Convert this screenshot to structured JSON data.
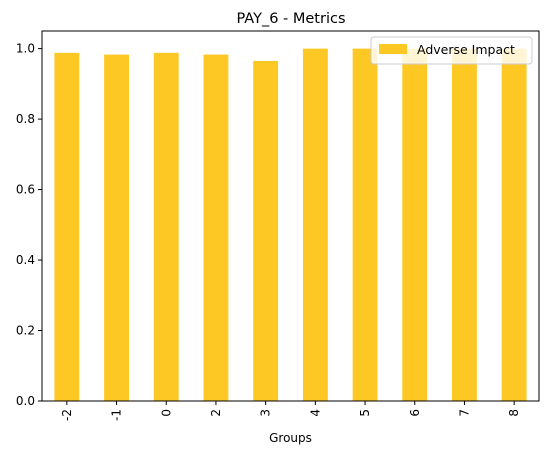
{
  "chart_data": {
    "type": "bar",
    "title": "PAY_6 - Metrics",
    "xlabel": "Groups",
    "ylabel": "",
    "categories": [
      "-2",
      "-1",
      "0",
      "2",
      "3",
      "4",
      "5",
      "6",
      "7",
      "8"
    ],
    "series": [
      {
        "name": "Adverse Impact",
        "color": "#fdc724",
        "values": [
          0.988,
          0.983,
          0.988,
          0.983,
          0.965,
          1.0,
          1.0,
          1.0,
          1.0,
          1.0
        ]
      }
    ],
    "ylim": [
      0,
      1.05
    ],
    "yticks": [
      0.0,
      0.2,
      0.4,
      0.6,
      0.8,
      1.0
    ],
    "ytick_labels": [
      "0.0",
      "0.2",
      "0.4",
      "0.6",
      "0.8",
      "1.0"
    ],
    "grid": false,
    "legend_position": "top-right"
  }
}
